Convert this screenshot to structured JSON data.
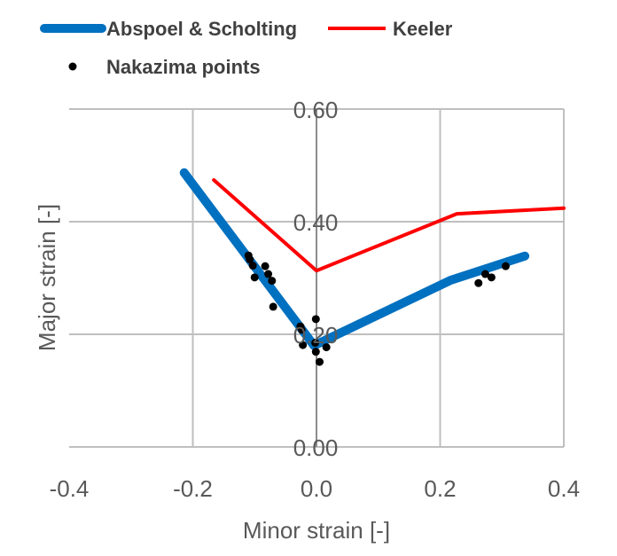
{
  "chart_data": {
    "type": "line",
    "title": "",
    "xlabel": "Minor strain [-]",
    "ylabel": "Major strain [-]",
    "xlim": [
      -0.4,
      0.4
    ],
    "ylim": [
      0.0,
      0.6
    ],
    "xticks": [
      -0.4,
      -0.2,
      0.0,
      0.2,
      0.4
    ],
    "xtick_labels": [
      "-0.4",
      "-0.2",
      "0.0",
      "0.2",
      "0.4"
    ],
    "yticks": [
      0.0,
      0.2,
      0.4,
      0.6
    ],
    "ytick_labels": [
      "0.00",
      "0.20",
      "0.40",
      "0.60"
    ],
    "grid": true,
    "legend_placement": "top",
    "series": [
      {
        "name": "Abspoel & Scholting",
        "type": "line",
        "color": "#0070C0",
        "x": [
          -0.214,
          -0.004,
          0.217,
          0.337
        ],
        "y": [
          0.487,
          0.18,
          0.296,
          0.339
        ]
      },
      {
        "name": "Keeler",
        "type": "line",
        "color": "#FF0000",
        "x": [
          -0.166,
          0.0,
          0.227,
          0.4
        ],
        "y": [
          0.474,
          0.313,
          0.414,
          0.424
        ]
      },
      {
        "name": "Nakazima points",
        "type": "scatter",
        "color": "#000000",
        "x": [
          -0.11,
          -0.108,
          -0.103,
          -0.1,
          -0.083,
          -0.078,
          -0.072,
          -0.07,
          -0.026,
          -0.024,
          -0.001,
          -0.022,
          -0.002,
          -0.001,
          0.016,
          0.005,
          0.262,
          0.273,
          0.283,
          0.306
        ],
        "y": [
          0.34,
          0.333,
          0.322,
          0.301,
          0.321,
          0.307,
          0.295,
          0.249,
          0.214,
          0.208,
          0.227,
          0.181,
          0.185,
          0.169,
          0.177,
          0.151,
          0.291,
          0.307,
          0.301,
          0.321
        ]
      }
    ]
  }
}
